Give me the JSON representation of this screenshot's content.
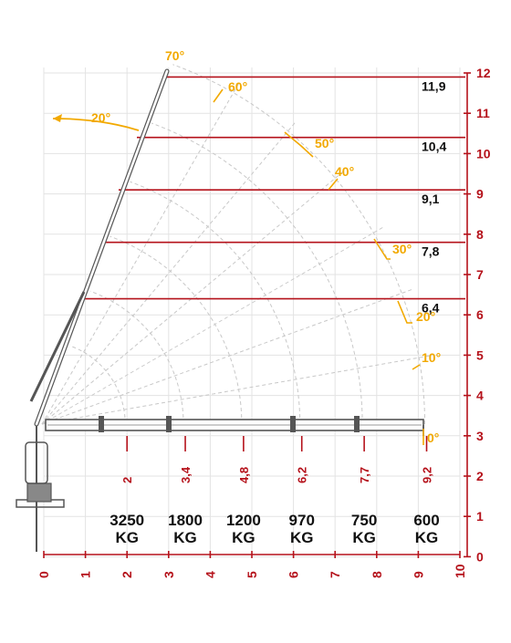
{
  "colors": {
    "red": "#b5121b",
    "yellow": "#f2a900",
    "grid": "#e3e3e3",
    "arc": "#c8c8c8",
    "crane": "#555555",
    "text": "#111111"
  },
  "y_axis": {
    "ticks": [
      "0",
      "1",
      "2",
      "3",
      "4",
      "5",
      "6",
      "7",
      "8",
      "9",
      "10",
      "11",
      "12"
    ]
  },
  "x_axis": {
    "ticks": [
      "0",
      "1",
      "2",
      "3",
      "4",
      "5",
      "6",
      "7",
      "8",
      "9",
      "10"
    ]
  },
  "height_levels": [
    {
      "value": 11.9,
      "label": "11,9"
    },
    {
      "value": 10.4,
      "label": "10,4"
    },
    {
      "value": 9.1,
      "label": "9,1"
    },
    {
      "value": 7.8,
      "label": "7,8"
    },
    {
      "value": 6.4,
      "label": "6,4"
    }
  ],
  "angle_labels": [
    "70°",
    "60°",
    "50°",
    "40°",
    "30°",
    "20°",
    "10°",
    "0°"
  ],
  "boom_over_angle": "20°",
  "capacities": [
    {
      "reach": "2",
      "reach_value": 2.0,
      "load": "3250",
      "unit": "KG"
    },
    {
      "reach": "3,4",
      "reach_value": 3.4,
      "load": "1800",
      "unit": "KG"
    },
    {
      "reach": "4,8",
      "reach_value": 4.8,
      "load": "1200",
      "unit": "KG"
    },
    {
      "reach": "6,2",
      "reach_value": 6.2,
      "load": "970",
      "unit": "KG"
    },
    {
      "reach": "7,7",
      "reach_value": 7.7,
      "load": "750",
      "unit": "KG"
    },
    {
      "reach": "9,2",
      "reach_value": 9.2,
      "load": "600",
      "unit": "KG"
    }
  ]
}
